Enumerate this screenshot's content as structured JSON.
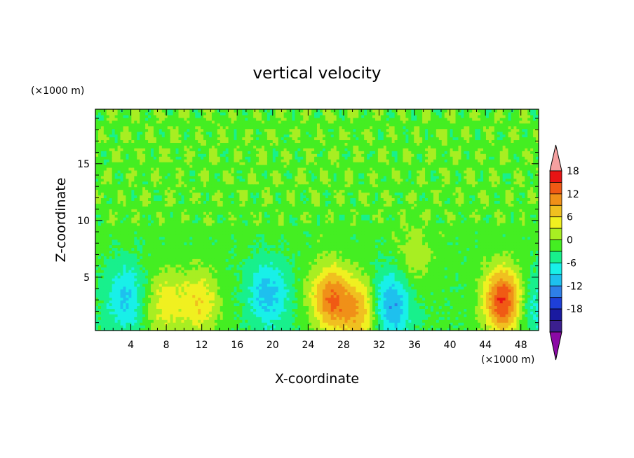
{
  "chart_data": {
    "type": "heatmap",
    "title": "vertical velocity",
    "xlabel": "X-coordinate",
    "ylabel": "Z-coordinate",
    "x_unit": "(×1000 m)",
    "y_unit": "(×1000 m)",
    "xlim": [
      0,
      50
    ],
    "ylim": [
      0.3,
      19.8
    ],
    "x_ticks": [
      "4",
      "8",
      "12",
      "16",
      "20",
      "24",
      "28",
      "32",
      "36",
      "40",
      "44",
      "48"
    ],
    "y_ticks": [
      "5",
      "10",
      "15"
    ],
    "colorbar": {
      "tick_labels": [
        "18",
        "12",
        "6",
        "0",
        "-6",
        "-12",
        "-18"
      ],
      "levels": [
        -21,
        -18,
        -15,
        -12,
        -9,
        -6,
        -3,
        0,
        3,
        6,
        9,
        12,
        15,
        18,
        21
      ],
      "colors": [
        "#8b0aa5",
        "#3b1f8f",
        "#1a1aa0",
        "#1e3fd8",
        "#2e7fe8",
        "#1ec0ee",
        "#18f0e8",
        "#18f08c",
        "#44ee22",
        "#a8ee22",
        "#f0f020",
        "#f0c020",
        "#f09018",
        "#f05a14",
        "#e81414",
        "#f5a0a0"
      ]
    },
    "features": [
      {
        "x": 46.0,
        "z": 3.0,
        "w": 18
      },
      {
        "x": 26.5,
        "z": 3.2,
        "w": 14
      },
      {
        "x": 29.8,
        "z": 2.0,
        "w": 11
      },
      {
        "x": 11.8,
        "z": 2.8,
        "w": 8
      },
      {
        "x": 7.8,
        "z": 2.8,
        "w": 7
      },
      {
        "x": 36.0,
        "z": 7.2,
        "w": 5
      },
      {
        "x": 19.5,
        "z": 3.5,
        "w": -8
      },
      {
        "x": 33.3,
        "z": 2.6,
        "w": -10
      },
      {
        "x": 3.5,
        "z": 3.2,
        "w": -7
      },
      {
        "x": 49.5,
        "z": 2.5,
        "w": -5
      }
    ]
  }
}
